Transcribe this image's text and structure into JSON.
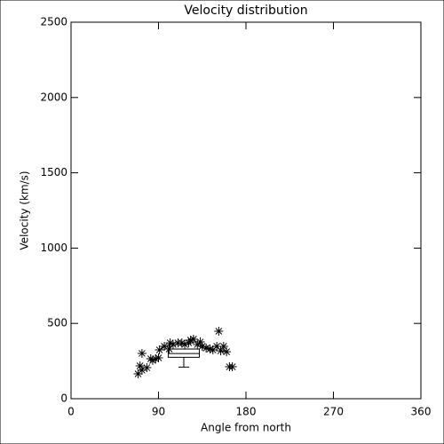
{
  "chart_data": {
    "type": "scatter",
    "title": "Velocity distribution",
    "x_label": "Angle from north",
    "y_label": "Velocity (km/s)",
    "xlim": [
      0,
      360
    ],
    "xticks": [
      0,
      90,
      180,
      270,
      360
    ],
    "ylim": [
      0,
      2500
    ],
    "yticks": [
      0,
      500,
      1000,
      1500,
      2000,
      2500
    ],
    "color": "#000000",
    "x": [
      69,
      73,
      71,
      73,
      78,
      82,
      84,
      87,
      90,
      91,
      96,
      101,
      102,
      105,
      110,
      114,
      117,
      121,
      123,
      126,
      130,
      133,
      135,
      139,
      143,
      146,
      150,
      152,
      154,
      157,
      160,
      163,
      166
    ],
    "values": [
      165,
      189,
      218,
      301,
      206,
      265,
      254,
      265,
      271,
      324,
      348,
      330,
      371,
      360,
      371,
      371,
      360,
      371,
      389,
      395,
      360,
      377,
      348,
      336,
      330,
      324,
      348,
      448,
      318,
      348,
      312,
      212,
      212
    ],
    "summary": {
      "x": 116,
      "width": 32,
      "box_low": 275,
      "mean": 300,
      "box_high": 330,
      "whisker_low": 210
    }
  }
}
